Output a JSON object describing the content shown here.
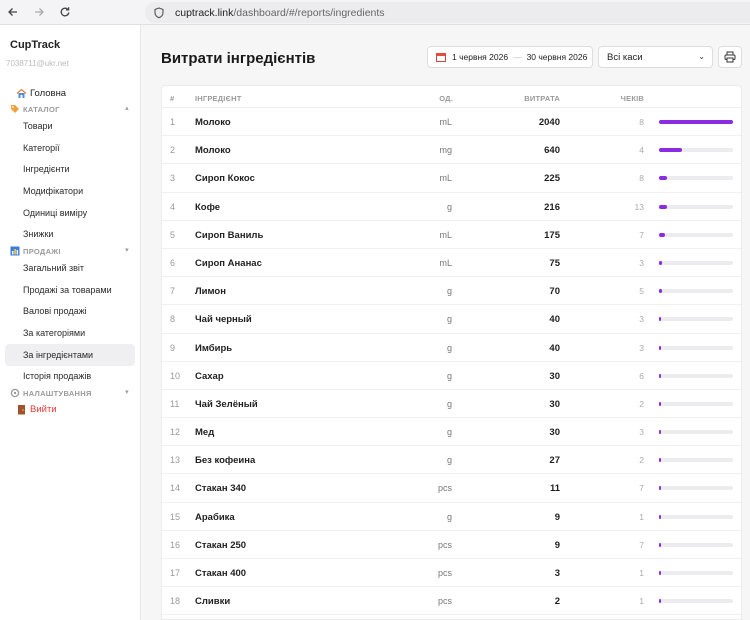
{
  "browser": {
    "url_host": "cuptrack.link",
    "url_path": "/dashboard/#/reports/ingredients"
  },
  "sidebar": {
    "brand": "CupTrack",
    "user_email": "7038711@ukr.net",
    "home_label": "Головна",
    "catalog_section": "КАТАЛОГ",
    "catalog_items": [
      "Товари",
      "Категорії",
      "Інгредієнти",
      "Модифікатори",
      "Одиниці виміру",
      "Знижки"
    ],
    "sales_section": "ПРОДАЖІ",
    "sales_items": [
      "Загальний звіт",
      "Продажі за товарами",
      "Валові продажі",
      "За категоріями",
      "За інгредієнтами",
      "Історія продажів"
    ],
    "active_item": "За інгредієнтами",
    "settings_section": "НАЛАШТУВАННЯ",
    "logout_label": "Вийти"
  },
  "main": {
    "title": "Витрати інгредієнтів",
    "date_from": "1 червня 2026",
    "date_to": "30 червня 2026",
    "cashier_select": "Всі каси",
    "columns": {
      "num": "#",
      "ingredient": "ІНГРЕДІЄНТ",
      "unit": "ОД.",
      "cost": "ВИТРАТА",
      "checks": "ЧЕКІВ"
    },
    "rows": [
      {
        "num": "1",
        "name": "Молоко",
        "unit": "mL",
        "cost": "2040",
        "checks": "8",
        "share": 1.0
      },
      {
        "num": "2",
        "name": "Молоко",
        "unit": "mg",
        "cost": "640",
        "checks": "4",
        "share": 0.314
      },
      {
        "num": "3",
        "name": "Сироп Кокос",
        "unit": "mL",
        "cost": "225",
        "checks": "8",
        "share": 0.11
      },
      {
        "num": "4",
        "name": "Кофе",
        "unit": "g",
        "cost": "216",
        "checks": "13",
        "share": 0.106
      },
      {
        "num": "5",
        "name": "Сироп Ваниль",
        "unit": "mL",
        "cost": "175",
        "checks": "7",
        "share": 0.086
      },
      {
        "num": "6",
        "name": "Сироп Ананас",
        "unit": "mL",
        "cost": "75",
        "checks": "3",
        "share": 0.037
      },
      {
        "num": "7",
        "name": "Лимон",
        "unit": "g",
        "cost": "70",
        "checks": "5",
        "share": 0.034
      },
      {
        "num": "8",
        "name": "Чай черный",
        "unit": "g",
        "cost": "40",
        "checks": "3",
        "share": 0.02
      },
      {
        "num": "9",
        "name": "Имбирь",
        "unit": "g",
        "cost": "40",
        "checks": "3",
        "share": 0.02
      },
      {
        "num": "10",
        "name": "Сахар",
        "unit": "g",
        "cost": "30",
        "checks": "6",
        "share": 0.015
      },
      {
        "num": "11",
        "name": "Чай Зелёный",
        "unit": "g",
        "cost": "30",
        "checks": "2",
        "share": 0.015
      },
      {
        "num": "12",
        "name": "Мед",
        "unit": "g",
        "cost": "30",
        "checks": "3",
        "share": 0.015
      },
      {
        "num": "13",
        "name": "Без кофеина",
        "unit": "g",
        "cost": "27",
        "checks": "2",
        "share": 0.013
      },
      {
        "num": "14",
        "name": "Стакан 340",
        "unit": "pcs",
        "cost": "11",
        "checks": "7",
        "share": 0.005
      },
      {
        "num": "15",
        "name": "Арабика",
        "unit": "g",
        "cost": "9",
        "checks": "1",
        "share": 0.004
      },
      {
        "num": "16",
        "name": "Стакан 250",
        "unit": "pcs",
        "cost": "9",
        "checks": "7",
        "share": 0.004
      },
      {
        "num": "17",
        "name": "Стакан 400",
        "unit": "pcs",
        "cost": "3",
        "checks": "1",
        "share": 0.001
      },
      {
        "num": "18",
        "name": "Сливки",
        "unit": "pcs",
        "cost": "2",
        "checks": "1",
        "share": 0.001
      }
    ]
  },
  "colors": {
    "accent": "#8b2be2",
    "logout": "#e53935"
  },
  "icons": {
    "back": "arrow-left-icon",
    "forward": "arrow-right-icon",
    "reload": "reload-icon",
    "site": "shield-icon",
    "home": "house-icon",
    "catalog": "tag-icon",
    "sales": "chart-icon",
    "settings": "gear-icon",
    "logout": "door-icon",
    "calendar": "calendar-icon",
    "print": "printer-icon"
  }
}
